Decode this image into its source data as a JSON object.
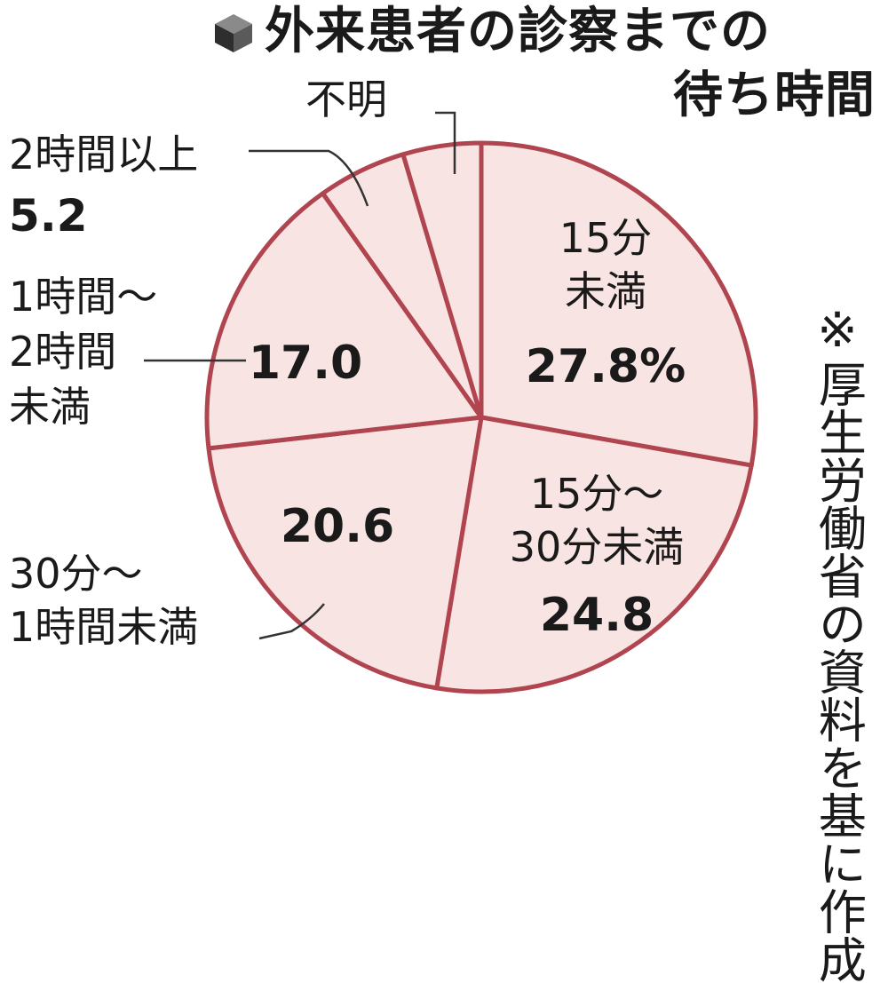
{
  "title": {
    "line1": "外来患者の診察までの",
    "line2": "待ち時間"
  },
  "note": {
    "mark": "※",
    "text": "厚生労働省の資料を基に作成"
  },
  "colors": {
    "fill": "#f8e4e2",
    "stroke": "#b0444f",
    "text": "#1a1a1a",
    "leader": "#333333",
    "icon_top": "#8a8a8a",
    "icon_left": "#2e2e2e",
    "icon_right": "#5a5a5a"
  },
  "chart_data": {
    "type": "pie",
    "unit": "%",
    "start": "12 o'clock, clockwise",
    "slices": [
      {
        "label_lines": [
          "15分",
          "未満"
        ],
        "value": 27.8,
        "value_label": "27.8%"
      },
      {
        "label_lines": [
          "15分～",
          "30分未満"
        ],
        "value": 24.8,
        "value_label": "24.8"
      },
      {
        "label_lines": [
          "30分～",
          "1時間未満"
        ],
        "value": 20.6,
        "value_label": "20.6"
      },
      {
        "label_lines": [
          "1時間～",
          "2時間",
          "未満"
        ],
        "value": 17.0,
        "value_label": "17.0"
      },
      {
        "label_lines": [
          "2時間以上"
        ],
        "value": 5.2,
        "value_label": "5.2"
      },
      {
        "label_lines": [
          "不明"
        ],
        "value": 4.6,
        "value_label": ""
      }
    ]
  }
}
